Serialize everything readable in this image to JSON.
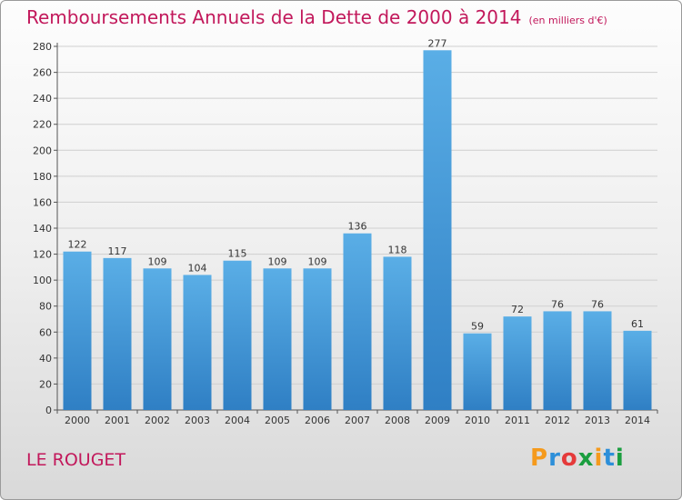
{
  "header": {
    "title": "Remboursements Annuels de la Dette de 2000 à 2014",
    "subtitle": "(en milliers d'€)"
  },
  "footer": {
    "city": "LE ROUGET",
    "logo_letters": [
      "P",
      "r",
      "o",
      "x",
      "i",
      "t",
      "i"
    ],
    "logo_colors": [
      "#f59a1c",
      "#2d8fd9",
      "#e53a3a",
      "#1a9e3f",
      "#f59a1c",
      "#2d8fd9",
      "#1a9e3f"
    ]
  },
  "colors": {
    "title": "#c2185b",
    "bar_top": "#5aaee6",
    "bar_bottom": "#2f7fc4"
  },
  "chart_data": {
    "type": "bar",
    "title": "Remboursements Annuels de la Dette de 2000 à 2014",
    "xlabel": "",
    "ylabel": "",
    "ylim": [
      0,
      280
    ],
    "yticks": [
      0,
      20,
      40,
      60,
      80,
      100,
      120,
      140,
      160,
      180,
      200,
      220,
      240,
      260,
      280
    ],
    "categories": [
      "2000",
      "2001",
      "2002",
      "2003",
      "2004",
      "2005",
      "2006",
      "2007",
      "2008",
      "2009",
      "2010",
      "2011",
      "2012",
      "2013",
      "2014"
    ],
    "values": [
      122,
      117,
      109,
      104,
      115,
      109,
      109,
      136,
      118,
      277,
      59,
      72,
      76,
      76,
      61
    ],
    "grid": true
  }
}
